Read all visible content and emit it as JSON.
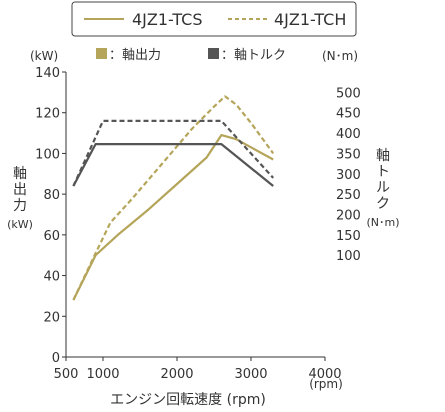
{
  "chart_data": {
    "type": "line",
    "legend_top": [
      {
        "name": "4JZ1-TCS",
        "color": "#b5a55a",
        "dash": "solid"
      },
      {
        "name": "4JZ1-TCH",
        "color": "#b5a55a",
        "dash": "dashed"
      }
    ],
    "legend_mid": [
      {
        "label": "：軸出力",
        "color": "#b5a55a"
      },
      {
        "label": "：軸トルク",
        "color": "#555555"
      }
    ],
    "left_unit": "(kW)",
    "right_unit": "(N･m)",
    "xlabel": "エンジン回転速度 (rpm)",
    "x_unit": "(rpm)",
    "left_title_chars": [
      "軸",
      "出",
      "力"
    ],
    "left_title_unit": "(kW)",
    "right_title_chars": [
      "軸",
      "ト",
      "ル",
      "ク"
    ],
    "right_title_unit": "(N･m)",
    "xlim": [
      500,
      4000
    ],
    "ylim_left": [
      0,
      140
    ],
    "ylim_right": [
      -150,
      550
    ],
    "x_ticks": [
      500,
      1000,
      2000,
      3000,
      4000
    ],
    "y_left_ticks": [
      0,
      20,
      40,
      60,
      80,
      100,
      120,
      140
    ],
    "y_right_ticks": [
      100,
      150,
      200,
      250,
      300,
      350,
      400,
      450,
      500
    ],
    "series": [
      {
        "name": "4JZ1-TCS",
        "quantity": "power",
        "axis": "left",
        "color": "#b5a55a",
        "dash": "solid",
        "x": [
          600,
          900,
          1200,
          1600,
          2000,
          2400,
          2600,
          2800,
          3000,
          3300
        ],
        "y": [
          28,
          50,
          60,
          72,
          85,
          98,
          109,
          107,
          103,
          97
        ]
      },
      {
        "name": "4JZ1-TCH",
        "quantity": "power",
        "axis": "left",
        "color": "#b5a55a",
        "dash": "dashed",
        "x": [
          600,
          900,
          1100,
          1400,
          1800,
          2200,
          2500,
          2650,
          2800,
          3000,
          3300
        ],
        "y": [
          28,
          51,
          66,
          78,
          95,
          112,
          123,
          128,
          124,
          115,
          100
        ]
      },
      {
        "name": "4JZ1-TCS",
        "quantity": "torque",
        "axis": "right",
        "color": "#555555",
        "dash": "solid",
        "x": [
          600,
          900,
          2600,
          3300
        ],
        "y": [
          270,
          373,
          373,
          270
        ]
      },
      {
        "name": "4JZ1-TCH",
        "quantity": "torque",
        "axis": "right",
        "color": "#555555",
        "dash": "dashed",
        "x": [
          600,
          1000,
          2600,
          3300
        ],
        "y": [
          270,
          430,
          430,
          290
        ]
      }
    ]
  }
}
